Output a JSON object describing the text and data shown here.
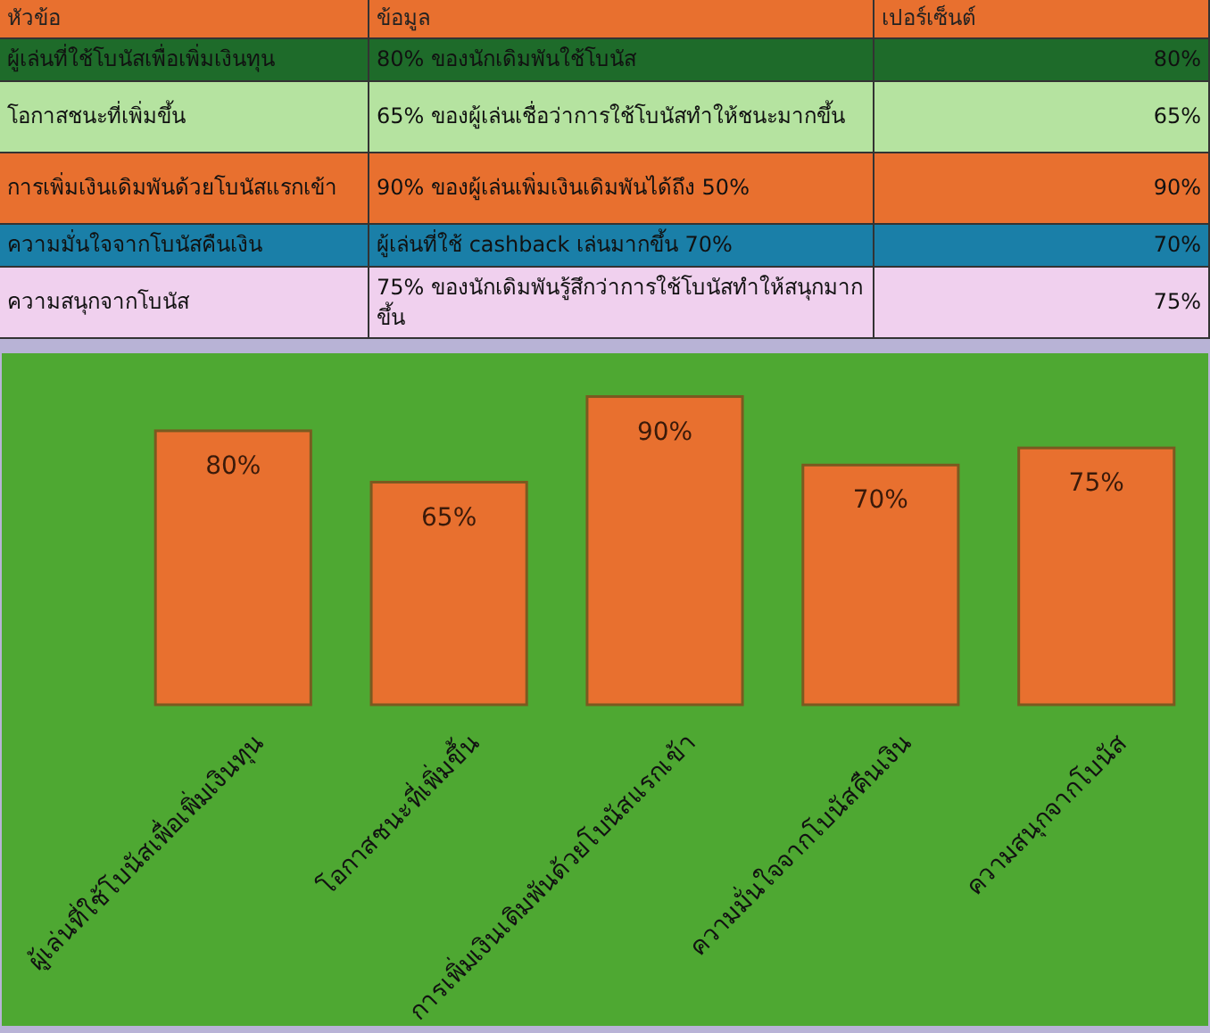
{
  "chart_data": {
    "type": "bar",
    "categories": [
      "ผู้เล่นที่ใช้โบนัสเพื่อเพิ่มเงินทุน",
      "โอกาสชนะที่เพิ่มขึ้น",
      "การเพิ่มเงินเดิมพันด้วยโบนัสแรกเข้า",
      "ความมั่นใจจากโบนัสคืนเงิน",
      "ความสนุกจากโบนัส"
    ],
    "values": [
      80,
      65,
      90,
      70,
      75
    ],
    "value_labels": [
      "80%",
      "65%",
      "90%",
      "70%",
      "75%"
    ],
    "color": "#e8702f",
    "annotations": [
      "หัวข้อ",
      "ข้อมูล",
      "เปอร์เซ็นต์",
      "80% ของนักเดิมพันใช้โบนัส",
      "65% ของผู้เล่นเชื่อว่าการใช้โบนัสทำให้ชนะมากขึ้น",
      "90% ของผู้เล่นเพิ่มเงินเดิมพันได้ถึง 50%",
      "ผู้เล่นที่ใช้ cashback เล่นมากขึ้น 70%",
      "75% ของนักเดิมพันรู้สึกว่าการใช้โบนัสทำให้สนุกมากขึ้น"
    ]
  }
}
